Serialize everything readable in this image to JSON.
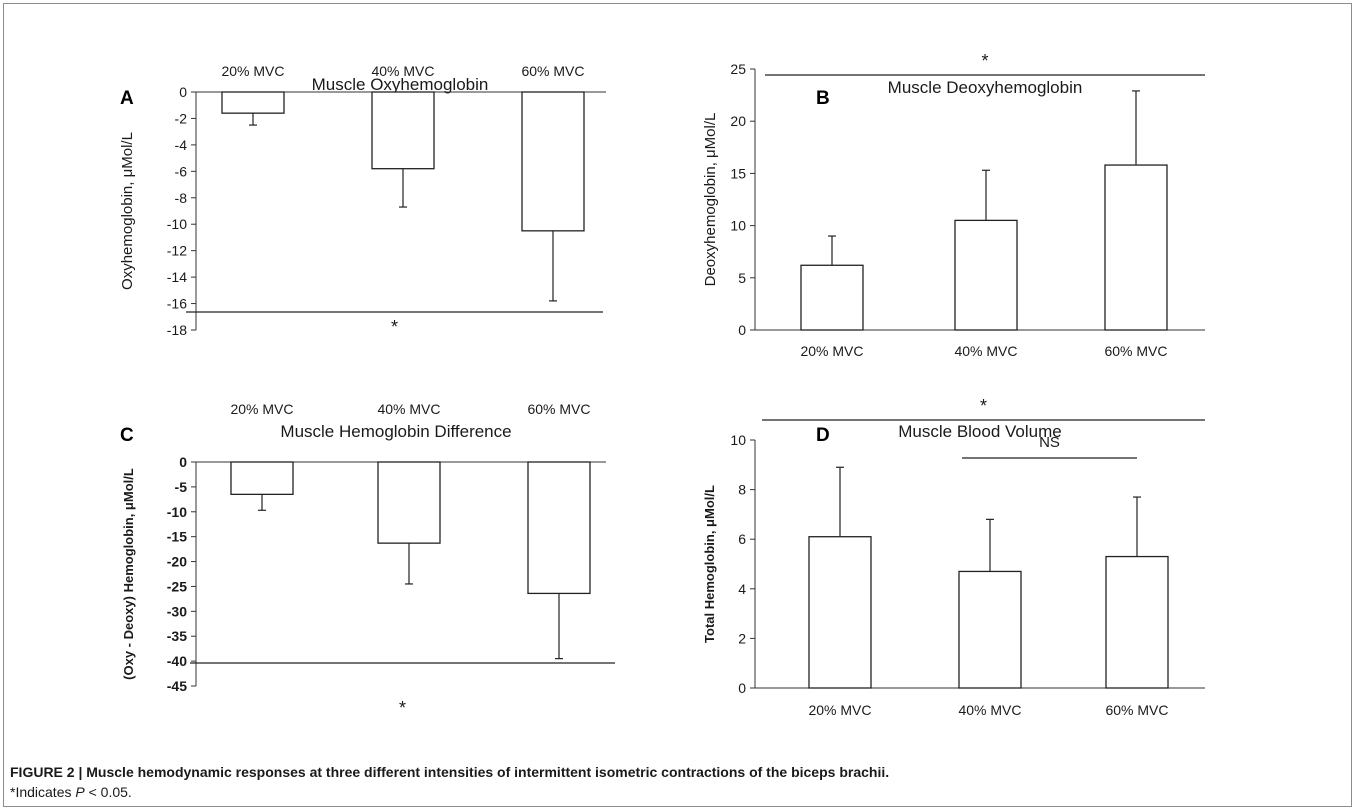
{
  "chart_data": [
    {
      "panel": "A",
      "type": "bar",
      "title": "Muscle Oxyhemoglobin",
      "ylabel": "Oxyhemoglobin, μMol/L",
      "categories": [
        "20% MVC",
        "40% MVC",
        "60% MVC"
      ],
      "values": [
        -1.6,
        -5.8,
        -10.5
      ],
      "error": [
        0.9,
        2.9,
        5.3
      ],
      "ylim": [
        -18,
        0
      ],
      "yticks": [
        0,
        -2,
        -4,
        -6,
        -8,
        -10,
        -12,
        -14,
        -16,
        -18
      ],
      "category_axis": "top",
      "significance": [
        {
          "label": "*",
          "span": "all"
        }
      ]
    },
    {
      "panel": "B",
      "type": "bar",
      "title": "Muscle Deoxyhemoglobin",
      "ylabel": "Deoxyhemoglobin, μMol/L",
      "categories": [
        "20% MVC",
        "40% MVC",
        "60% MVC"
      ],
      "values": [
        6.2,
        10.5,
        15.8
      ],
      "error": [
        2.8,
        4.8,
        7.1
      ],
      "ylim": [
        0,
        25
      ],
      "yticks": [
        0,
        5,
        10,
        15,
        20,
        25
      ],
      "category_axis": "bottom",
      "significance": [
        {
          "label": "*",
          "span": "all"
        }
      ]
    },
    {
      "panel": "C",
      "type": "bar",
      "title": "Muscle  Hemoglobin Difference",
      "ylabel": "(Oxy - Deoxy) Hemoglobin, μMol/L",
      "categories": [
        "20% MVC",
        "40% MVC",
        "60% MVC"
      ],
      "values": [
        -6.5,
        -16.3,
        -26.4
      ],
      "error": [
        3.2,
        8.2,
        13.1
      ],
      "ylim": [
        -45,
        0
      ],
      "yticks": [
        0,
        -5,
        -10,
        -15,
        -20,
        -25,
        -30,
        -35,
        -40,
        -45
      ],
      "category_axis": "top",
      "significance": [
        {
          "label": "*",
          "span": "all"
        }
      ]
    },
    {
      "panel": "D",
      "type": "bar",
      "title": "Muscle Blood Volume",
      "ylabel": "Total Hemoglobin, μMol/L",
      "categories": [
        "20% MVC",
        "40% MVC",
        "60% MVC"
      ],
      "values": [
        6.1,
        4.7,
        5.3
      ],
      "error": [
        2.8,
        2.1,
        2.4
      ],
      "ylim": [
        0,
        10
      ],
      "yticks": [
        0,
        2,
        4,
        6,
        8,
        10
      ],
      "category_axis": "bottom",
      "significance": [
        {
          "label": "*",
          "span": "all"
        },
        {
          "label": "NS",
          "span": "40-60"
        }
      ]
    }
  ],
  "caption": {
    "title": "FIGURE 2 | Muscle hemodynamic responses at three different intensities of intermittent isometric contractions of the biceps brachii.",
    "note_prefix": "*Indicates ",
    "note_var": "P",
    "note_suffix": " < 0.05."
  }
}
